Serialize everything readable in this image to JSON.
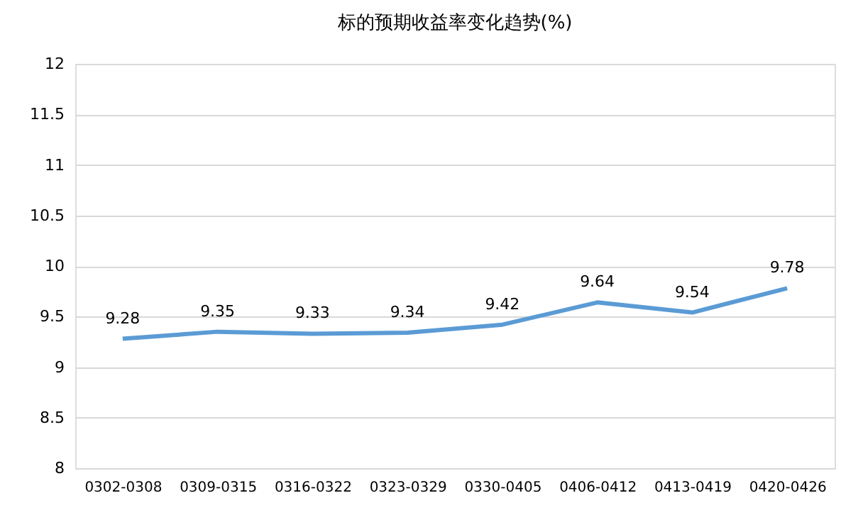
{
  "chart_data": {
    "type": "line",
    "title": "标的预期收益率变化趋势(%)",
    "categories": [
      "0302-0308",
      "0309-0315",
      "0316-0322",
      "0323-0329",
      "0330-0405",
      "0406-0412",
      "0413-0419",
      "0420-0426"
    ],
    "series": [
      {
        "color": "#5b9bd5",
        "values": [
          9.28,
          9.35,
          9.33,
          9.34,
          9.42,
          9.64,
          9.54,
          9.78
        ]
      }
    ],
    "ylim": [
      8,
      12
    ],
    "yticks": [
      8,
      8.5,
      9,
      9.5,
      10,
      10.5,
      11,
      11.5,
      12
    ],
    "grid": "y",
    "data_labels": true,
    "marker": "none",
    "line_style": "solid"
  }
}
